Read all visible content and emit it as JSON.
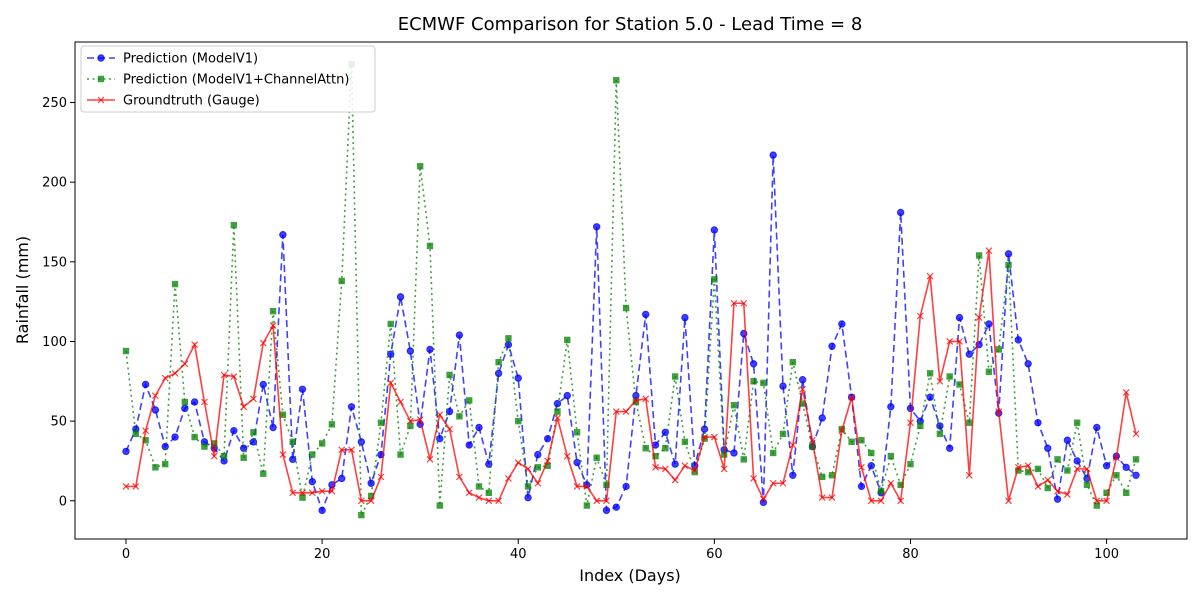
{
  "chart_data": {
    "type": "line",
    "title": "ECMWF Comparison for Station 5.0 - Lead Time = 8",
    "xlabel": "Index (Days)",
    "ylabel": "Rainfall (mm)",
    "xlim": [
      -5.2,
      108.2
    ],
    "ylim": [
      -24,
      288
    ],
    "xticks": [
      0,
      20,
      40,
      60,
      80,
      100
    ],
    "yticks": [
      0,
      50,
      100,
      150,
      200,
      250
    ],
    "grid": false,
    "legend_position": "top-left",
    "x": [
      0,
      1,
      2,
      3,
      4,
      5,
      6,
      7,
      8,
      9,
      10,
      11,
      12,
      13,
      14,
      15,
      16,
      17,
      18,
      19,
      20,
      21,
      22,
      23,
      24,
      25,
      26,
      27,
      28,
      29,
      30,
      31,
      32,
      33,
      34,
      35,
      36,
      37,
      38,
      39,
      40,
      41,
      42,
      43,
      44,
      45,
      46,
      47,
      48,
      49,
      50,
      51,
      52,
      53,
      54,
      55,
      56,
      57,
      58,
      59,
      60,
      61,
      62,
      63,
      64,
      65,
      66,
      67,
      68,
      69,
      70,
      71,
      72,
      73,
      74,
      75,
      76,
      77,
      78,
      79,
      80,
      81,
      82,
      83,
      84,
      85,
      86,
      87,
      88,
      89,
      90,
      91,
      92,
      93,
      94,
      95,
      96,
      97,
      98,
      99,
      100,
      101,
      102,
      103
    ],
    "series": [
      {
        "name": "Prediction (ModelV1)",
        "color": "#0000ff",
        "line_style": "dashed",
        "marker": "circle",
        "values": [
          31,
          45,
          73,
          57,
          34,
          40,
          58,
          62,
          37,
          33,
          25,
          44,
          33,
          37,
          73,
          46,
          167,
          26,
          70,
          12,
          -6,
          10,
          14,
          59,
          37,
          11,
          29,
          92,
          128,
          94,
          48,
          95,
          39,
          56,
          104,
          35,
          46,
          23,
          80,
          98,
          77,
          2,
          29,
          39,
          61,
          66,
          24,
          10,
          172,
          -6,
          -4,
          9,
          66,
          117,
          35,
          43,
          23,
          115,
          22,
          45,
          170,
          32,
          30,
          105,
          86,
          -1,
          217,
          72,
          16,
          76,
          34,
          52,
          97,
          111,
          65,
          9,
          22,
          5,
          59,
          181,
          58,
          50,
          65,
          47,
          33,
          115,
          92,
          98,
          111,
          55,
          155,
          101,
          86,
          49,
          33,
          1,
          38,
          25,
          14,
          46,
          22,
          28,
          21,
          16
        ]
      },
      {
        "name": "Prediction (ModelV1+ChannelAttn)",
        "color": "#008000",
        "line_style": "dotted",
        "marker": "square",
        "values": [
          94,
          42,
          38,
          21,
          23,
          136,
          62,
          40,
          34,
          36,
          28,
          173,
          27,
          43,
          17,
          119,
          54,
          37,
          2,
          29,
          36,
          48,
          138,
          274,
          -9,
          3,
          49,
          111,
          29,
          47,
          210,
          160,
          -3,
          79,
          53,
          63,
          9,
          5,
          87,
          102,
          50,
          9,
          21,
          22,
          56,
          101,
          43,
          -3,
          27,
          10,
          264,
          121,
          62,
          33,
          28,
          33,
          78,
          37,
          18,
          39,
          139,
          29,
          60,
          26,
          75,
          74,
          30,
          42,
          87,
          61,
          34,
          15,
          16,
          45,
          37,
          38,
          30,
          6,
          28,
          10,
          23,
          47,
          80,
          42,
          78,
          73,
          49,
          154,
          81,
          95,
          148,
          19,
          18,
          20,
          8,
          26,
          19,
          49,
          10,
          -3,
          5,
          16,
          5,
          26
        ]
      },
      {
        "name": "Groundtruth (Gauge)",
        "color": "#ff0000",
        "line_style": "solid",
        "marker": "x",
        "values": [
          9,
          9,
          44,
          66,
          77,
          80,
          86,
          98,
          62,
          28,
          79,
          78,
          59,
          64,
          99,
          110,
          29,
          5,
          5,
          5,
          6,
          6,
          32,
          32,
          0,
          0,
          15,
          74,
          62,
          50,
          51,
          26,
          54,
          45,
          15,
          5,
          2,
          0,
          0,
          14,
          24,
          20,
          11,
          25,
          52,
          28,
          9,
          9,
          0,
          0,
          56,
          56,
          63,
          64,
          21,
          20,
          13,
          22,
          19,
          40,
          40,
          20,
          124,
          124,
          14,
          1,
          11,
          11,
          35,
          70,
          38,
          2,
          2,
          44,
          65,
          21,
          0,
          0,
          11,
          0,
          49,
          116,
          141,
          75,
          100,
          100,
          16,
          115,
          157,
          56,
          0,
          21,
          22,
          9,
          13,
          6,
          4,
          20,
          20,
          0,
          0,
          27,
          68,
          42
        ]
      }
    ]
  }
}
